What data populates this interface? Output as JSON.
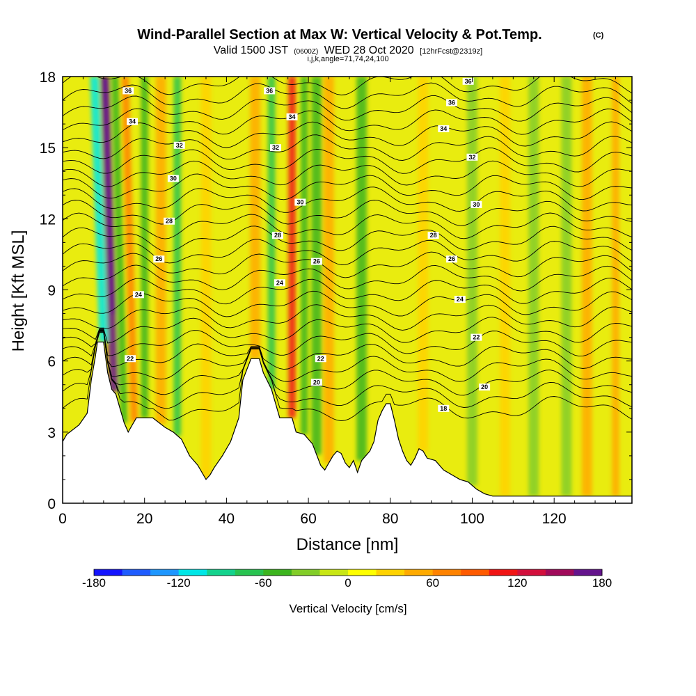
{
  "chart_data": {
    "type": "heatmap",
    "title": "Wind-Parallel Section at Max W: Vertical Velocity & Pot.Temp.",
    "title_mark": "(C)",
    "subtitle_main_prefix": "Valid 1500 JST",
    "subtitle_utc": "(0600Z)",
    "subtitle_main_date": "WED 28 Oct 2020",
    "subtitle_fcst": "[12hrFcst@2319z]",
    "subtitle_params": "i,j,k,angle=71,74,24,100",
    "xlabel": "Distance [nm]",
    "ylabel": "Height [Kft MSL]",
    "xlim": [
      0,
      139
    ],
    "ylim": [
      0,
      18
    ],
    "x_ticks": [
      0,
      20,
      40,
      60,
      80,
      100,
      120
    ],
    "x_tick_labels": [
      "0",
      "20",
      "40",
      "60",
      "80",
      "100",
      "120"
    ],
    "y_ticks": [
      0,
      3,
      6,
      9,
      12,
      15,
      18
    ],
    "y_tick_labels": [
      "0",
      "3",
      "6",
      "9",
      "12",
      "15",
      "18"
    ],
    "colorbar": {
      "label": "Vertical Velocity [cm/s]",
      "min": -180,
      "max": 180,
      "tick_values": [
        -180,
        -120,
        -60,
        0,
        60,
        120,
        180
      ],
      "tick_labels": [
        "-180",
        "-120",
        "-60",
        "0",
        "60",
        "120",
        "180"
      ],
      "colors": [
        "#1414ff",
        "#1f5cff",
        "#1e96ff",
        "#00e6e6",
        "#14d28c",
        "#28c350",
        "#3cb41e",
        "#82cd28",
        "#c8e614",
        "#ffff00",
        "#ffd200",
        "#ffaa00",
        "#ff8200",
        "#ff5a00",
        "#f01414",
        "#d20f3c",
        "#a00a5a",
        "#64148c"
      ]
    },
    "updraft_cores": [
      {
        "x": 12.5,
        "w": 170
      },
      {
        "x": 17.5,
        "w": 70
      },
      {
        "x": 24,
        "w": 45
      },
      {
        "x": 35,
        "w": 30
      },
      {
        "x": 47,
        "w": 40
      },
      {
        "x": 56,
        "w": 100
      },
      {
        "x": 65,
        "w": 40
      },
      {
        "x": 88,
        "w": 25
      },
      {
        "x": 108,
        "w": 20
      },
      {
        "x": 128,
        "w": 40
      },
      {
        "x": 135,
        "w": 55
      }
    ],
    "downdraft_cores": [
      {
        "x": 10,
        "w": -120
      },
      {
        "x": 15,
        "w": -60
      },
      {
        "x": 20,
        "w": -55
      },
      {
        "x": 28,
        "w": -75
      },
      {
        "x": 51,
        "w": -70
      },
      {
        "x": 59,
        "w": -55
      },
      {
        "x": 62,
        "w": -50
      },
      {
        "x": 73,
        "w": -45
      },
      {
        "x": 100,
        "w": -25
      },
      {
        "x": 115,
        "w": -30
      },
      {
        "x": 123,
        "w": -30
      }
    ],
    "contour_labels": [
      {
        "text": "36",
        "x": 16,
        "y": 17.4
      },
      {
        "text": "34",
        "x": 17,
        "y": 16.1
      },
      {
        "text": "32",
        "x": 28.5,
        "y": 15.1
      },
      {
        "text": "30",
        "x": 27,
        "y": 13.7
      },
      {
        "text": "28",
        "x": 26,
        "y": 11.9
      },
      {
        "text": "26",
        "x": 23.5,
        "y": 10.3
      },
      {
        "text": "24",
        "x": 18.5,
        "y": 8.8
      },
      {
        "text": "22",
        "x": 16.5,
        "y": 6.1
      },
      {
        "text": "36",
        "x": 50.5,
        "y": 17.4
      },
      {
        "text": "34",
        "x": 56,
        "y": 16.3
      },
      {
        "text": "32",
        "x": 52,
        "y": 15.0
      },
      {
        "text": "30",
        "x": 58,
        "y": 12.7
      },
      {
        "text": "28",
        "x": 52.5,
        "y": 11.3
      },
      {
        "text": "26",
        "x": 62,
        "y": 10.2
      },
      {
        "text": "24",
        "x": 53,
        "y": 9.3
      },
      {
        "text": "22",
        "x": 63,
        "y": 6.1
      },
      {
        "text": "20",
        "x": 62,
        "y": 5.1
      },
      {
        "text": "36",
        "x": 99,
        "y": 17.8
      },
      {
        "text": "36",
        "x": 95,
        "y": 16.9
      },
      {
        "text": "34",
        "x": 93,
        "y": 15.8
      },
      {
        "text": "32",
        "x": 100,
        "y": 14.6
      },
      {
        "text": "30",
        "x": 101,
        "y": 12.6
      },
      {
        "text": "28",
        "x": 90.5,
        "y": 11.3
      },
      {
        "text": "26",
        "x": 95,
        "y": 10.3
      },
      {
        "text": "24",
        "x": 97,
        "y": 8.6
      },
      {
        "text": "22",
        "x": 101,
        "y": 7.0
      },
      {
        "text": "20",
        "x": 103,
        "y": 4.9
      },
      {
        "text": "18",
        "x": 93,
        "y": 4.0
      }
    ]
  }
}
